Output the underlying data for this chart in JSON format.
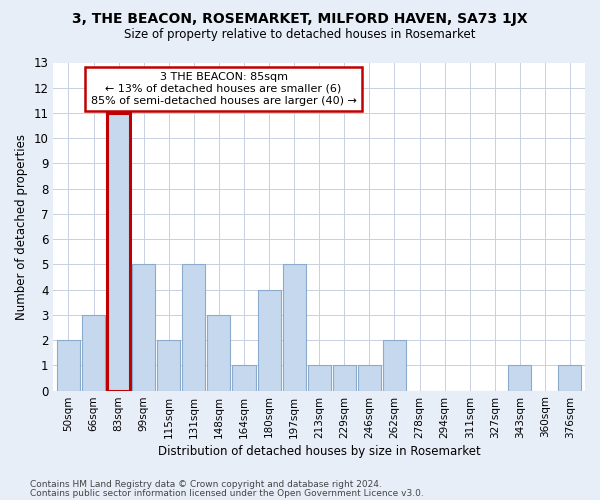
{
  "title": "3, THE BEACON, ROSEMARKET, MILFORD HAVEN, SA73 1JX",
  "subtitle": "Size of property relative to detached houses in Rosemarket",
  "xlabel": "Distribution of detached houses by size in Rosemarket",
  "ylabel": "Number of detached properties",
  "bin_labels": [
    "50sqm",
    "66sqm",
    "83sqm",
    "99sqm",
    "115sqm",
    "131sqm",
    "148sqm",
    "164sqm",
    "180sqm",
    "197sqm",
    "213sqm",
    "229sqm",
    "246sqm",
    "262sqm",
    "278sqm",
    "294sqm",
    "311sqm",
    "327sqm",
    "343sqm",
    "360sqm",
    "376sqm"
  ],
  "values": [
    2,
    3,
    11,
    5,
    2,
    5,
    3,
    1,
    4,
    5,
    1,
    1,
    1,
    2,
    0,
    0,
    0,
    0,
    1,
    0,
    1
  ],
  "highlight_index": 2,
  "bar_color": "#c5d8ed",
  "highlight_line_color": "#c00000",
  "ylim": [
    0,
    13
  ],
  "yticks": [
    0,
    1,
    2,
    3,
    4,
    5,
    6,
    7,
    8,
    9,
    10,
    11,
    12,
    13
  ],
  "annotation_title": "3 THE BEACON: 85sqm",
  "annotation_line1": "← 13% of detached houses are smaller (6)",
  "annotation_line2": "85% of semi-detached houses are larger (40) →",
  "footnote1": "Contains HM Land Registry data © Crown copyright and database right 2024.",
  "footnote2": "Contains public sector information licensed under the Open Government Licence v3.0.",
  "bg_color": "#e8eef8",
  "plot_bg_color": "#ffffff",
  "grid_color": "#c8d0e0"
}
